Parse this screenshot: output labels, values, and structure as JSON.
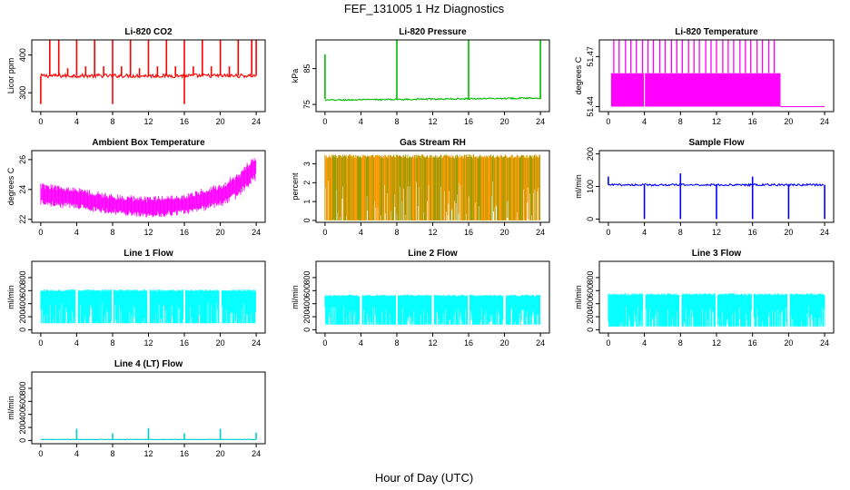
{
  "figure": {
    "title": "FEF_131005  1 Hz Diagnostics",
    "xlabel": "Hour of Day (UTC)"
  },
  "chart_data": [
    {
      "type": "line",
      "title": "Li-820 CO2",
      "ylabel": "Licor ppm",
      "color": "#ff0000",
      "xlim": [
        0,
        24
      ],
      "xticks": [
        0,
        4,
        8,
        12,
        16,
        20,
        24
      ],
      "ylim": [
        250,
        440
      ],
      "yticks": [
        300,
        400
      ],
      "yticklabels": [
        "300",
        "400"
      ],
      "baseline": 345,
      "noise": 5,
      "noise_from": 0,
      "noise_to": 24,
      "trend": [],
      "spikes": [
        {
          "x": 0.0,
          "v": 270
        },
        {
          "x": 1.0,
          "v": 440
        },
        {
          "x": 2.0,
          "v": 440
        },
        {
          "x": 3.0,
          "v": 365
        },
        {
          "x": 4.0,
          "v": 440
        },
        {
          "x": 5.0,
          "v": 370
        },
        {
          "x": 6.0,
          "v": 440
        },
        {
          "x": 7.0,
          "v": 370
        },
        {
          "x": 8.0,
          "v": 440
        },
        {
          "x": 8.0,
          "v": 270
        },
        {
          "x": 9.0,
          "v": 370
        },
        {
          "x": 10.0,
          "v": 440
        },
        {
          "x": 11.0,
          "v": 365
        },
        {
          "x": 12.0,
          "v": 440
        },
        {
          "x": 13.0,
          "v": 370
        },
        {
          "x": 14.0,
          "v": 440
        },
        {
          "x": 15.0,
          "v": 370
        },
        {
          "x": 16.0,
          "v": 440
        },
        {
          "x": 16.0,
          "v": 270
        },
        {
          "x": 17.0,
          "v": 370
        },
        {
          "x": 18.0,
          "v": 440
        },
        {
          "x": 19.0,
          "v": 370
        },
        {
          "x": 20.0,
          "v": 440
        },
        {
          "x": 21.0,
          "v": 370
        },
        {
          "x": 22.0,
          "v": 440
        },
        {
          "x": 23.5,
          "v": 440
        },
        {
          "x": 24.0,
          "v": 440
        }
      ],
      "gaps": []
    },
    {
      "type": "line",
      "title": "Li-820 Pressure",
      "ylabel": "kPa",
      "color": "#00bb00",
      "xlim": [
        0,
        24
      ],
      "xticks": [
        0,
        4,
        8,
        12,
        16,
        20,
        24
      ],
      "ylim": [
        73,
        93
      ],
      "yticks": [
        75,
        85
      ],
      "yticklabels": [
        "75",
        "85"
      ],
      "baseline": 76.5,
      "noise": 0.2,
      "noise_from": 0,
      "noise_to": 24,
      "trend": [
        [
          0,
          76.2
        ],
        [
          24,
          76.8
        ]
      ],
      "spikes": [
        {
          "x": 0.0,
          "v": 89
        },
        {
          "x": 8.0,
          "v": 93
        },
        {
          "x": 16.0,
          "v": 93
        },
        {
          "x": 24.0,
          "v": 93
        }
      ],
      "gaps": []
    },
    {
      "type": "line",
      "title": "Li-820 Temperature",
      "ylabel": "degrees C",
      "color": "#ff00ff",
      "xlim": [
        0,
        24
      ],
      "xticks": [
        0,
        4,
        8,
        12,
        16,
        20,
        24
      ],
      "ylim": [
        51.437,
        51.48
      ],
      "yticks": [
        51.44,
        51.47
      ],
      "yticklabels": [
        "51.44",
        "51.47"
      ],
      "band": {
        "lo": 51.44,
        "hi": 51.46,
        "from": 0.3,
        "to": 19.1,
        "tail_from": 19.1,
        "tail_to": 24,
        "tail_value": 51.44
      },
      "spikes": [
        {
          "x": 0.6,
          "v": 51.48
        },
        {
          "x": 1.2,
          "v": 51.48
        },
        {
          "x": 1.9,
          "v": 51.48
        },
        {
          "x": 2.5,
          "v": 51.48
        },
        {
          "x": 3.1,
          "v": 51.48
        },
        {
          "x": 3.8,
          "v": 51.48
        },
        {
          "x": 4.4,
          "v": 51.48
        },
        {
          "x": 5.0,
          "v": 51.48
        },
        {
          "x": 5.7,
          "v": 51.48
        },
        {
          "x": 6.3,
          "v": 51.48
        },
        {
          "x": 7.0,
          "v": 51.48
        },
        {
          "x": 7.6,
          "v": 51.48
        },
        {
          "x": 8.2,
          "v": 51.48
        },
        {
          "x": 8.9,
          "v": 51.48
        },
        {
          "x": 9.5,
          "v": 51.48
        },
        {
          "x": 10.1,
          "v": 51.48
        },
        {
          "x": 10.8,
          "v": 51.48
        },
        {
          "x": 11.4,
          "v": 51.48
        },
        {
          "x": 12.0,
          "v": 51.48
        },
        {
          "x": 12.7,
          "v": 51.48
        },
        {
          "x": 13.3,
          "v": 51.48
        },
        {
          "x": 13.9,
          "v": 51.48
        },
        {
          "x": 14.6,
          "v": 51.48
        },
        {
          "x": 15.2,
          "v": 51.48
        },
        {
          "x": 15.8,
          "v": 51.48
        },
        {
          "x": 16.5,
          "v": 51.48
        },
        {
          "x": 17.1,
          "v": 51.48
        },
        {
          "x": 17.8,
          "v": 51.48
        },
        {
          "x": 18.4,
          "v": 51.48
        },
        {
          "x": 19.5,
          "v": 51.46
        },
        {
          "x": 20.2,
          "v": 51.46
        }
      ],
      "gaps": [
        4.0
      ]
    },
    {
      "type": "line",
      "title": "Ambient Box Temperature",
      "ylabel": "degrees C",
      "color": "#ff00ff",
      "xlim": [
        0,
        24
      ],
      "xticks": [
        0,
        4,
        8,
        12,
        16,
        20,
        24
      ],
      "ylim": [
        21.8,
        26.6
      ],
      "yticks": [
        22,
        24,
        26
      ],
      "yticklabels": [
        "22",
        "24",
        "26"
      ],
      "envelope": {
        "center": [
          [
            0,
            23.7
          ],
          [
            4,
            23.4
          ],
          [
            8,
            23.0
          ],
          [
            12,
            22.8
          ],
          [
            16,
            23.0
          ],
          [
            20,
            23.6
          ],
          [
            22,
            24.3
          ],
          [
            24,
            25.5
          ]
        ],
        "half": [
          [
            0,
            0.6
          ],
          [
            8,
            0.55
          ],
          [
            16,
            0.55
          ],
          [
            24,
            0.7
          ]
        ]
      },
      "spikes": [],
      "gaps": []
    },
    {
      "type": "line",
      "title": "Gas Stream RH",
      "ylabel": "percent",
      "color": "#ff9900",
      "color2": "#999900",
      "xlim": [
        0,
        24
      ],
      "xticks": [
        0,
        4,
        8,
        12,
        16,
        20,
        24
      ],
      "ylim": [
        -0.1,
        3.7
      ],
      "yticks": [
        0,
        1,
        2,
        3
      ],
      "yticklabels": [
        "0",
        "1",
        "2",
        "3"
      ],
      "fillband": {
        "lo": 0.0,
        "hi": 3.5,
        "from": 0,
        "to": 24
      },
      "spikes": [],
      "gaps": []
    },
    {
      "type": "line",
      "title": "Sample Flow",
      "ylabel": "ml/min",
      "color": "#0000ff",
      "xlim": [
        0,
        24
      ],
      "xticks": [
        0,
        4,
        8,
        12,
        16,
        20,
        24
      ],
      "ylim": [
        -10,
        210
      ],
      "yticks": [
        0,
        100,
        200
      ],
      "yticklabels": [
        "0",
        "100",
        "200"
      ],
      "baseline": 105,
      "noise": 3,
      "noise_from": 0,
      "noise_to": 23.9,
      "trend": [],
      "spikes": [
        {
          "x": 0.0,
          "v": 130
        },
        {
          "x": 4.0,
          "v": 0
        },
        {
          "x": 8.0,
          "v": 0
        },
        {
          "x": 8.0,
          "v": 140
        },
        {
          "x": 12.0,
          "v": 0
        },
        {
          "x": 16.0,
          "v": 0
        },
        {
          "x": 16.0,
          "v": 130
        },
        {
          "x": 20.0,
          "v": 0
        },
        {
          "x": 24.0,
          "v": 0
        }
      ],
      "gaps": []
    },
    {
      "type": "line",
      "title": "Line 1 Flow",
      "ylabel": "ml/min",
      "color": "#00ffff",
      "xlim": [
        0,
        24
      ],
      "xticks": [
        0,
        4,
        8,
        12,
        16,
        20,
        24
      ],
      "ylim": [
        -50,
        1050
      ],
      "yticks": [
        0,
        200,
        400,
        600,
        800
      ],
      "yticklabels": [
        "0",
        "200",
        "400",
        "600",
        "800"
      ],
      "fillband": {
        "lo": 100,
        "hi": 620,
        "from": 0,
        "to": 24
      },
      "spikes": [],
      "gaps": [
        4.0,
        8.0,
        12.0,
        16.0,
        20.0
      ]
    },
    {
      "type": "line",
      "title": "Line 2 Flow",
      "ylabel": "ml/min",
      "color": "#00ffff",
      "xlim": [
        0,
        24
      ],
      "xticks": [
        0,
        4,
        8,
        12,
        16,
        20,
        24
      ],
      "ylim": [
        -50,
        1050
      ],
      "yticks": [
        0,
        200,
        400,
        600,
        800
      ],
      "yticklabels": [
        "0",
        "200",
        "400",
        "600",
        "800"
      ],
      "fillband": {
        "lo": 80,
        "hi": 540,
        "from": 0,
        "to": 24
      },
      "spikes": [],
      "gaps": [
        4.0,
        8.0,
        12.0,
        16.0,
        20.0
      ]
    },
    {
      "type": "line",
      "title": "Line 3 Flow",
      "ylabel": "ml/min",
      "color": "#00ffff",
      "xlim": [
        0,
        24
      ],
      "xticks": [
        0,
        4,
        8,
        12,
        16,
        20,
        24
      ],
      "ylim": [
        -50,
        1050
      ],
      "yticks": [
        0,
        200,
        400,
        600,
        800
      ],
      "yticklabels": [
        "0",
        "200",
        "400",
        "600",
        "800"
      ],
      "fillband": {
        "lo": 50,
        "hi": 560,
        "from": 0,
        "to": 24
      },
      "spikes": [],
      "gaps": [
        4.0,
        8.0,
        12.0,
        16.0,
        20.0
      ]
    },
    {
      "type": "line",
      "title": "Line 4 (LT) Flow",
      "ylabel": "ml/min",
      "color": "#00cccc",
      "xlim": [
        0,
        24
      ],
      "xticks": [
        0,
        4,
        8,
        12,
        16,
        20,
        24
      ],
      "ylim": [
        -50,
        1050
      ],
      "yticks": [
        0,
        200,
        400,
        600,
        800
      ],
      "yticklabels": [
        "0",
        "200",
        "400",
        "600",
        "800"
      ],
      "baseline": 15,
      "noise": 3,
      "noise_from": 0,
      "noise_to": 24,
      "trend": [],
      "spikes": [
        {
          "x": 4.0,
          "v": 180
        },
        {
          "x": 8.0,
          "v": 110
        },
        {
          "x": 12.0,
          "v": 190
        },
        {
          "x": 16.0,
          "v": 110
        },
        {
          "x": 20.0,
          "v": 180
        },
        {
          "x": 24.0,
          "v": 120
        }
      ],
      "gaps": []
    }
  ]
}
